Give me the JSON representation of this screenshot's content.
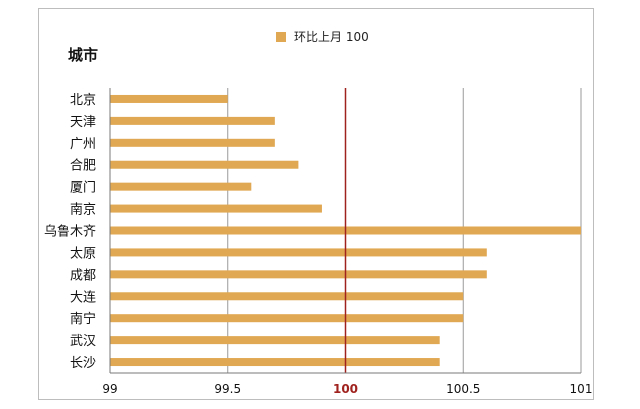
{
  "chart_data": {
    "type": "bar",
    "orientation": "horizontal",
    "title": "城市",
    "categories": [
      "北京",
      "天津",
      "广州",
      "合肥",
      "厦门",
      "南京",
      "乌鲁木齐",
      "太原",
      "成都",
      "大连",
      "南宁",
      "武汉",
      "长沙"
    ],
    "series": [
      {
        "name": "环比上月 100",
        "values": [
          99.5,
          99.7,
          99.7,
          99.8,
          99.6,
          99.9,
          101.0,
          100.6,
          100.6,
          100.5,
          100.5,
          100.4,
          100.4
        ]
      }
    ],
    "xlim": [
      99,
      101
    ],
    "xticks": [
      "99",
      "99.5",
      "100",
      "100.5",
      "101"
    ],
    "tick_values": [
      99,
      99.5,
      100,
      100.5,
      101
    ],
    "reference_value": 100,
    "legend_position": "top-center",
    "grid": true,
    "colors": {
      "bar": "#e0a852",
      "reference_line": "#a0221e",
      "gridline": "#9a9a9a",
      "text": "#111111",
      "highlight_tick": "#a0221e"
    }
  }
}
